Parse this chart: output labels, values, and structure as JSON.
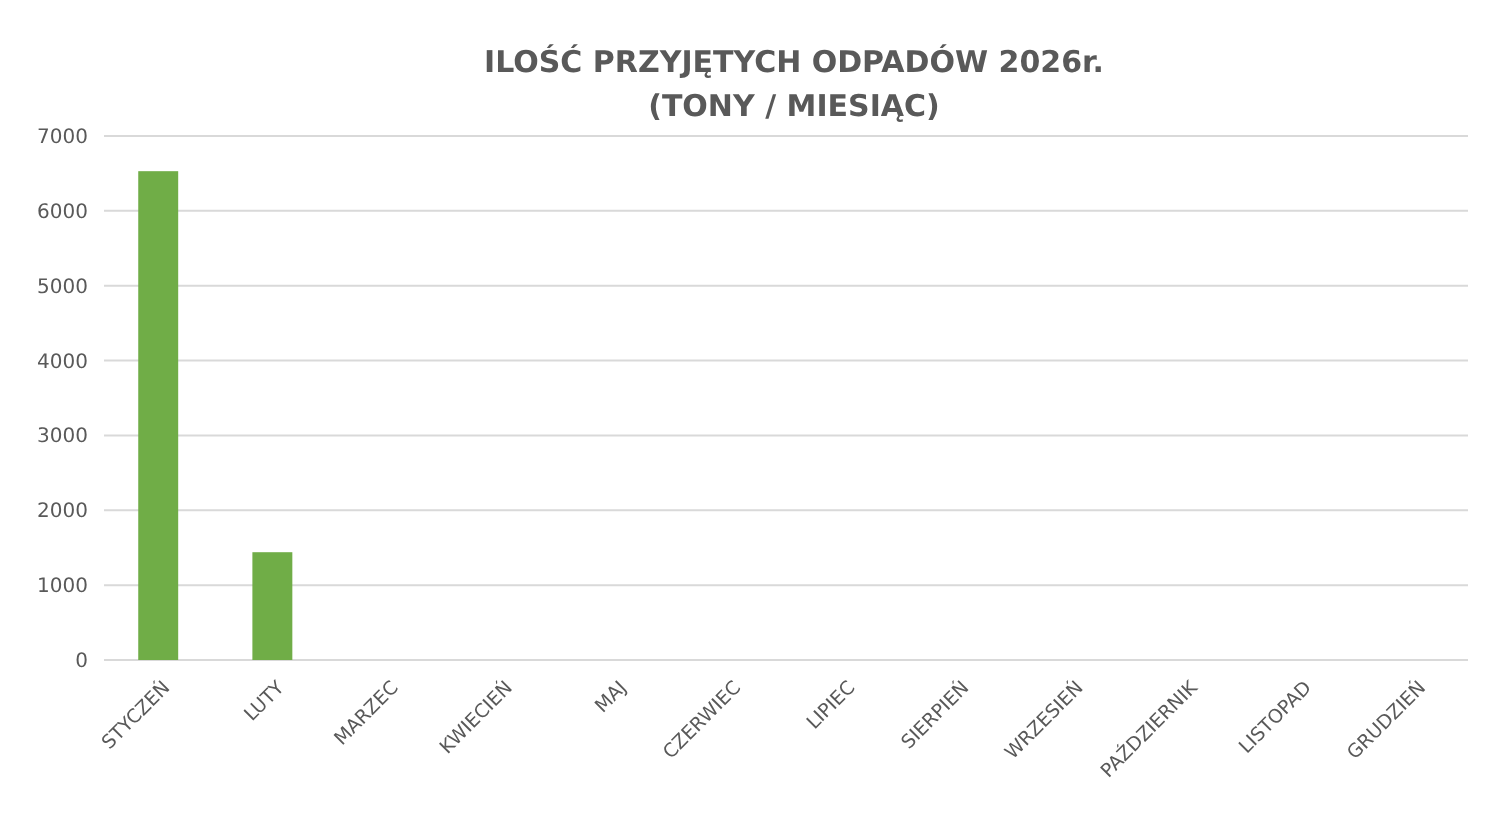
{
  "chart_data": {
    "type": "bar",
    "title": "ILOŚĆ PRZYJĘTYCH ODPADÓW 2026r.",
    "subtitle": "(TONY / MIESIĄC)",
    "categories": [
      "STYCZEŃ",
      "LUTY",
      "MARZEC",
      "KWIECIEŃ",
      "MAJ",
      "CZERWIEC",
      "LIPIEC",
      "SIERPIEŃ",
      "WRZESIEŃ",
      "PAŹDZIERNIK",
      "LISTOPAD",
      "GRUDZIEŃ"
    ],
    "values": [
      6530,
      1440,
      null,
      null,
      null,
      null,
      null,
      null,
      null,
      null,
      null,
      null
    ],
    "color": "#70ad47",
    "ylim": [
      0,
      7000
    ],
    "yticks": [
      0,
      1000,
      2000,
      3000,
      4000,
      5000,
      6000,
      7000
    ],
    "grid": "y"
  }
}
